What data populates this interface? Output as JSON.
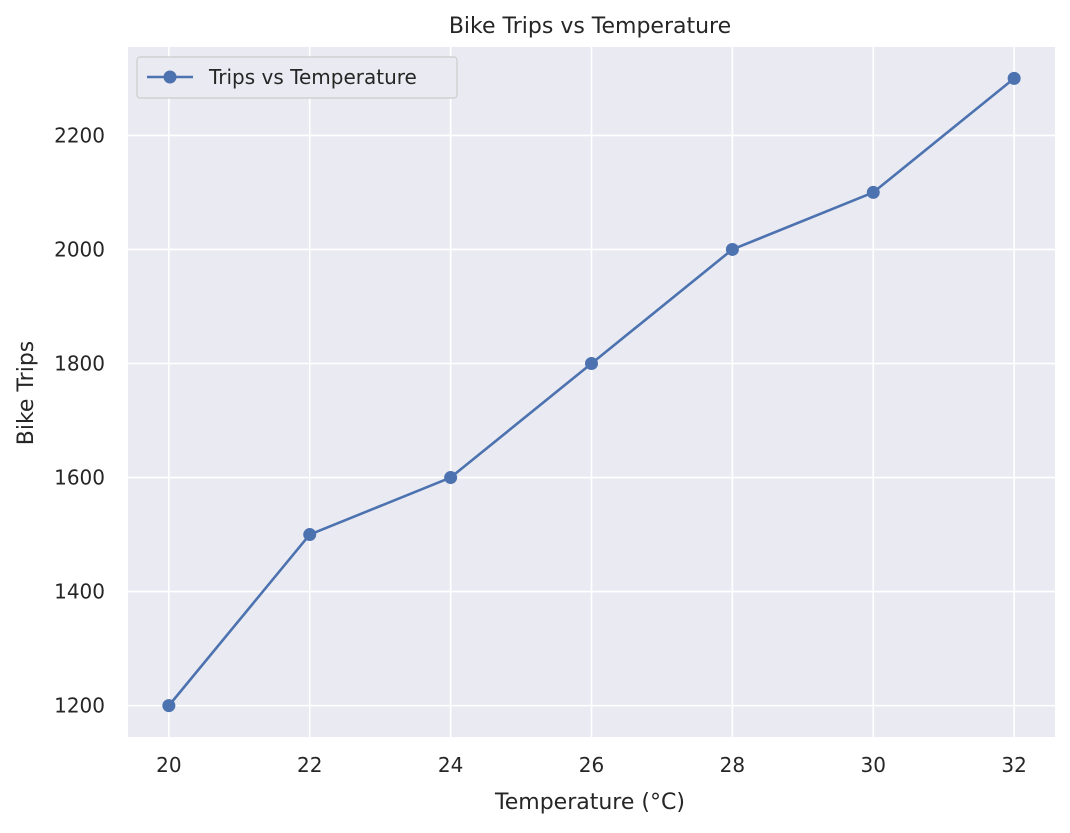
{
  "chart_data": {
    "type": "line",
    "title": "Bike Trips vs Temperature",
    "xlabel": "Temperature (°C)",
    "ylabel": "Bike Trips",
    "x": [
      20,
      22,
      24,
      26,
      28,
      30,
      32
    ],
    "series": [
      {
        "name": "Trips vs Temperature",
        "values": [
          1200,
          1500,
          1600,
          1800,
          2000,
          2100,
          2300
        ],
        "color": "#4c72b0",
        "marker": "circle"
      }
    ],
    "xlim": [
      19.42,
      32.58
    ],
    "ylim": [
      1145,
      2355
    ],
    "x_ticks": [
      20,
      22,
      24,
      26,
      28,
      30,
      32
    ],
    "y_ticks": [
      1200,
      1400,
      1600,
      1800,
      2000,
      2200
    ],
    "grid": true,
    "legend_position": "upper-left",
    "background_color": "#eaeaf2",
    "grid_color": "#ffffff"
  }
}
